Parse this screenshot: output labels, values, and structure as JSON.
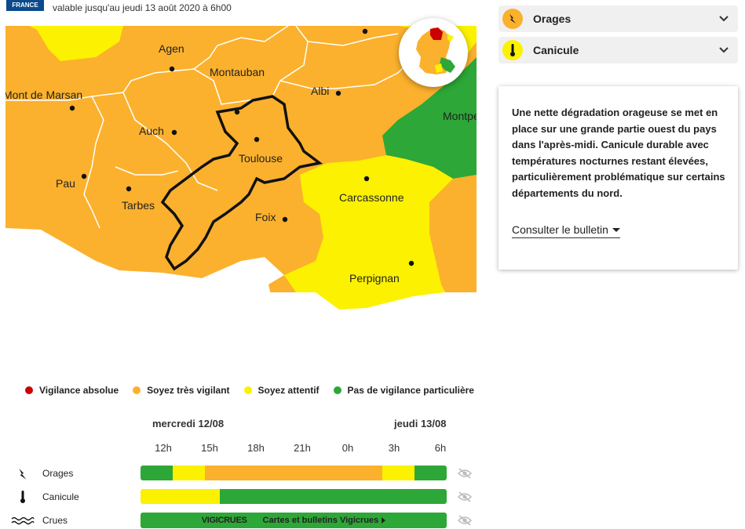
{
  "header": {
    "logo_text": "FRANCE",
    "validity": "valable jusqu'au jeudi 13 août 2020 à 6h00"
  },
  "map": {
    "cities": [
      {
        "name": "Agen"
      },
      {
        "name": "Mont de Marsan"
      },
      {
        "name": "Montauban"
      },
      {
        "name": "Albi"
      },
      {
        "name": "Montpe"
      },
      {
        "name": "Auch"
      },
      {
        "name": "Toulouse"
      },
      {
        "name": "Pau"
      },
      {
        "name": "Tarbes"
      },
      {
        "name": "Carcassonne"
      },
      {
        "name": "Foix"
      },
      {
        "name": "Perpignan"
      }
    ],
    "colors": {
      "orange": "#fbb12d",
      "yellow": "#fbf100",
      "green": "#2da737",
      "red": "#cc0000"
    }
  },
  "phenomena": [
    {
      "label": "Orages",
      "icon": "lightning-icon",
      "color": "#fbb12d"
    },
    {
      "label": "Canicule",
      "icon": "thermometer-icon",
      "color": "#fbf100"
    }
  ],
  "bulletin": {
    "text": "Une nette dégradation orageuse se met en place sur une grande partie ouest du pays dans l'après-midi. Canicule durable avec températures nocturnes restant élevées, particulièrement problématique sur certains départements du nord.",
    "link": "Consulter le bulletin"
  },
  "legend": [
    {
      "label": "Vigilance absolue",
      "color": "#cc0000"
    },
    {
      "label": "Soyez très vigilant",
      "color": "#fbb12d"
    },
    {
      "label": "Soyez attentif",
      "color": "#fbf100"
    },
    {
      "label": "Pas de vigilance particulière",
      "color": "#2da737"
    }
  ],
  "timeline": {
    "day1": "mercredi 12/08",
    "day2": "jeudi 13/08",
    "hours": [
      "12h",
      "15h",
      "18h",
      "21h",
      "0h",
      "3h",
      "6h"
    ],
    "rows": [
      {
        "label": "Orages",
        "icon": "lightning-icon",
        "segments": [
          {
            "color": "#2da737",
            "pct": 10.5
          },
          {
            "color": "#fbf100",
            "pct": 10.5
          },
          {
            "color": "#fbb12d",
            "pct": 58
          },
          {
            "color": "#fbf100",
            "pct": 10.5
          },
          {
            "color": "#2da737",
            "pct": 10.5
          }
        ]
      },
      {
        "label": "Canicule",
        "icon": "thermometer-icon",
        "segments": [
          {
            "color": "#fbf100",
            "pct": 26
          },
          {
            "color": "#2da737",
            "pct": 74
          }
        ]
      },
      {
        "label": "Crues",
        "icon": "waves-icon"
      }
    ],
    "vigicrues_logo": "VIGICRUES",
    "vigicrues_link": "Cartes et bulletins Vigicrues"
  }
}
